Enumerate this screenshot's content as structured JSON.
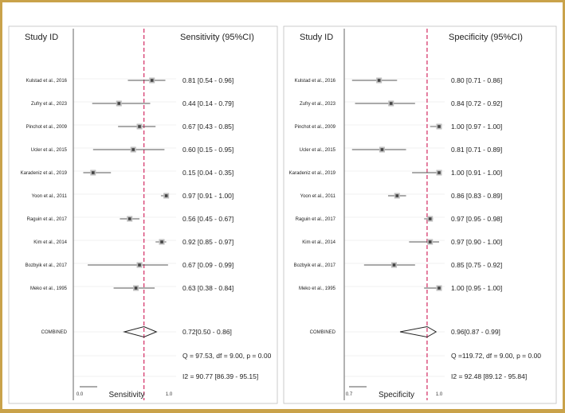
{
  "chart_data": [
    {
      "type": "forest",
      "study_header": "Study ID",
      "value_header": "Sensitivity (95%CI)",
      "xlabel": "Sensitivity",
      "xlim": [
        0.0,
        1.0
      ],
      "x_ticks": [
        "0.0",
        "1.0"
      ],
      "reference_line": 0.72,
      "studies": [
        {
          "name": "Kulstad et al., 2016",
          "est": 0.81,
          "lo": 0.54,
          "hi": 0.96,
          "label": "0.81 [0.54 - 0.96]"
        },
        {
          "name": "Zufry et al., 2023",
          "est": 0.44,
          "lo": 0.14,
          "hi": 0.79,
          "label": "0.44 [0.14 - 0.79]"
        },
        {
          "name": "Pinchot et al., 2009",
          "est": 0.67,
          "lo": 0.43,
          "hi": 0.85,
          "label": "0.67 [0.43 - 0.85]"
        },
        {
          "name": "Ucler et al., 2015",
          "est": 0.6,
          "lo": 0.15,
          "hi": 0.95,
          "label": "0.60 [0.15 - 0.95]"
        },
        {
          "name": "Karadeniz et al., 2019",
          "est": 0.15,
          "lo": 0.04,
          "hi": 0.35,
          "label": "0.15 [0.04 - 0.35]"
        },
        {
          "name": "Yoon et al., 2011",
          "est": 0.97,
          "lo": 0.91,
          "hi": 1.0,
          "label": "0.97 [0.91 - 1.00]"
        },
        {
          "name": "Raguin et al., 2017",
          "est": 0.56,
          "lo": 0.45,
          "hi": 0.67,
          "label": "0.56 [0.45 - 0.67]"
        },
        {
          "name": "Kim et al., 2014",
          "est": 0.92,
          "lo": 0.85,
          "hi": 0.97,
          "label": "0.92 [0.85 - 0.97]"
        },
        {
          "name": "Bozbyik et al., 2017",
          "est": 0.67,
          "lo": 0.09,
          "hi": 0.99,
          "label": "0.67 [0.09 - 0.99]"
        },
        {
          "name": "Meko et al., 1995",
          "est": 0.63,
          "lo": 0.38,
          "hi": 0.84,
          "label": "0.63 [0.38 - 0.84]"
        }
      ],
      "combined": {
        "name": "COMBINED",
        "est": 0.72,
        "lo": 0.5,
        "hi": 0.86,
        "label": "0.72[0.50 - 0.86]"
      },
      "q_stat": "Q = 97.53, df = 9.00, p =  0.00",
      "i2_stat": "I2 = 90.77 [86.39 - 95.15]"
    },
    {
      "type": "forest",
      "study_header": "Study ID",
      "value_header": "Specificity (95%CI)",
      "xlabel": "Specificity",
      "xlim": [
        0.7,
        1.0
      ],
      "x_ticks": [
        "0.7",
        "1.0"
      ],
      "reference_line": 0.96,
      "studies": [
        {
          "name": "Kulstad et al., 2016",
          "est": 0.8,
          "lo": 0.71,
          "hi": 0.86,
          "label": "0.80 [0.71 - 0.86]"
        },
        {
          "name": "Zufry et al., 2023",
          "est": 0.84,
          "lo": 0.72,
          "hi": 0.92,
          "label": "0.84 [0.72 - 0.92]"
        },
        {
          "name": "Pinchot et al., 2009",
          "est": 1.0,
          "lo": 0.97,
          "hi": 1.0,
          "label": "1.00 [0.97 - 1.00]"
        },
        {
          "name": "Ucler et al., 2015",
          "est": 0.81,
          "lo": 0.71,
          "hi": 0.89,
          "label": "0.81 [0.71 - 0.89]"
        },
        {
          "name": "Karadeniz et al., 2019",
          "est": 1.0,
          "lo": 0.91,
          "hi": 1.0,
          "label": "1.00 [0.91 - 1.00]"
        },
        {
          "name": "Yoon et al., 2011",
          "est": 0.86,
          "lo": 0.83,
          "hi": 0.89,
          "label": "0.86 [0.83 - 0.89]"
        },
        {
          "name": "Raguin et al., 2017",
          "est": 0.97,
          "lo": 0.95,
          "hi": 0.98,
          "label": "0.97 [0.95 - 0.98]"
        },
        {
          "name": "Kim et al., 2014",
          "est": 0.97,
          "lo": 0.9,
          "hi": 1.0,
          "label": "0.97 [0.90 - 1.00]"
        },
        {
          "name": "Bozbyik et al., 2017",
          "est": 0.85,
          "lo": 0.75,
          "hi": 0.92,
          "label": "0.85 [0.75 - 0.92]"
        },
        {
          "name": "Meko et al., 1995",
          "est": 1.0,
          "lo": 0.95,
          "hi": 1.0,
          "label": "1.00 [0.95 - 1.00]"
        }
      ],
      "combined": {
        "name": "COMBINED",
        "est": 0.96,
        "lo": 0.87,
        "hi": 0.99,
        "label": "0.96[0.87 - 0.99]"
      },
      "q_stat": "Q =119.72, df = 9.00, p =  0.00",
      "i2_stat": "I2 = 92.48 [89.12 - 95.84]"
    }
  ],
  "colors": {
    "reference_line": "#d63b6e",
    "frame_border": "#c9a24a",
    "marker": "#444444",
    "line": "#555555"
  }
}
